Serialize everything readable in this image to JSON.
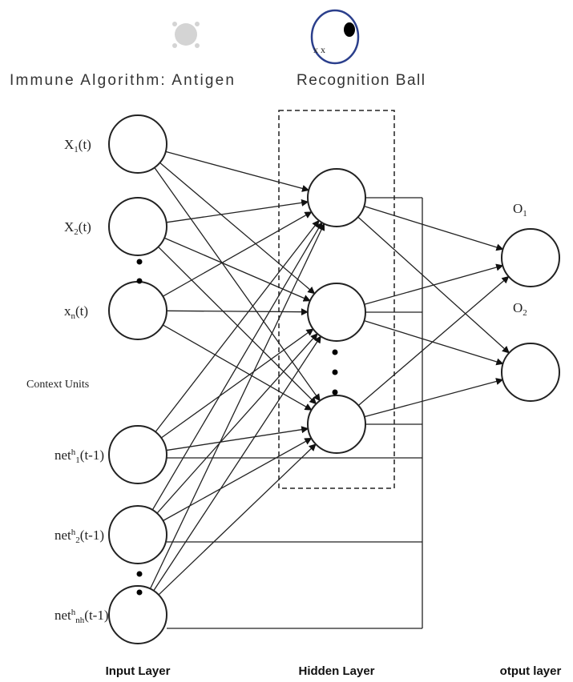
{
  "header": {
    "antigen_label": "Immune Algorithm: Antigen",
    "ball_label": "Recognition Ball",
    "ball_marks": "x x"
  },
  "input_nodes": [
    {
      "base": "X",
      "sub": "1",
      "rest": "(t)"
    },
    {
      "base": "X",
      "sub": "2",
      "rest": "(t)"
    },
    {
      "base": "x",
      "sub": "n",
      "rest": "(t)"
    },
    {
      "base": "net",
      "sup": "h",
      "sub": "1",
      "rest": "(t-1)"
    },
    {
      "base": "net",
      "sup": "h",
      "sub": "2",
      "rest": "(t-1)"
    },
    {
      "base": "net",
      "sup": "h",
      "sub": "nh",
      "rest": "(t-1)"
    }
  ],
  "context_label": "Context Units",
  "output_nodes": [
    {
      "base": "O",
      "sub": "1"
    },
    {
      "base": "O",
      "sub": "2"
    }
  ],
  "layers": [
    "Input Layer",
    "Hidden Layer",
    "otput layer"
  ]
}
